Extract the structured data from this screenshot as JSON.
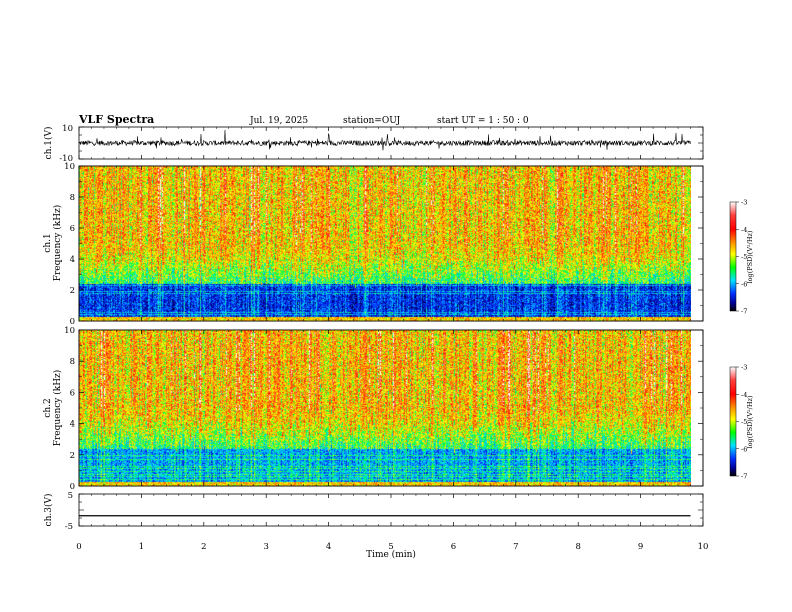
{
  "header": {
    "title": "VLF Spectra",
    "date": "Jul. 19, 2025",
    "station": "station=OUJ",
    "start": "start  UT =   1 : 50 : 0"
  },
  "chart_data": [
    {
      "type": "line",
      "panel": "waveform-ch1",
      "ylabel": "ch.1(V)",
      "ylim": [
        -10,
        10
      ],
      "yticks": [
        "10",
        "-10"
      ],
      "x": [
        0,
        1,
        2,
        3,
        4,
        5,
        6,
        7,
        8,
        9,
        9.8
      ],
      "values": [
        0,
        0,
        0,
        0,
        0,
        0,
        0,
        0,
        0,
        0,
        0
      ],
      "note_color": "#000000"
    },
    {
      "type": "heatmap",
      "panel": "spectrogram-ch1",
      "ylabel": "ch.1\nFrequency (kHz)",
      "ylabel_lines": [
        "ch.1",
        "Frequency (kHz)"
      ],
      "ylim": [
        0,
        10
      ],
      "yticks": [
        "0",
        "2",
        "4",
        "6",
        "8",
        "10"
      ],
      "xlim": [
        0,
        10
      ],
      "data_end_min": 9.8,
      "colorbar": {
        "label": "log(PSD)(V²/Hz)",
        "range": [
          -7,
          -3
        ],
        "ticks": [
          "-3",
          "-4",
          "-5",
          "-6",
          "-7"
        ],
        "colors": [
          "#ffffff",
          "#ff0000",
          "#ff8000",
          "#ffff00",
          "#00ff00",
          "#00ffff",
          "#0000ff",
          "#000080",
          "#000000"
        ]
      }
    },
    {
      "type": "heatmap",
      "panel": "spectrogram-ch2",
      "ylabel_lines": [
        "ch.2",
        "Frequency (kHz)"
      ],
      "ylim": [
        0,
        10
      ],
      "yticks": [
        "0",
        "2",
        "4",
        "6",
        "8",
        "10"
      ],
      "xlim": [
        0,
        10
      ],
      "data_end_min": 9.8,
      "colorbar": {
        "label": "log(PSD)(V²/Hz)",
        "range": [
          -7,
          -3
        ],
        "ticks": [
          "-3",
          "-4",
          "-5",
          "-6",
          "-7"
        ]
      }
    },
    {
      "type": "line",
      "panel": "waveform-ch3",
      "ylabel": "ch.3(V)",
      "ylim": [
        -5,
        5
      ],
      "yticks": [
        "5",
        "-5"
      ],
      "x": [
        0,
        9.8
      ],
      "values": [
        -1.8,
        -1.8
      ]
    }
  ],
  "xaxis": {
    "label": "Time (min)",
    "ticks": [
      "0",
      "1",
      "2",
      "3",
      "4",
      "5",
      "6",
      "7",
      "8",
      "9",
      "10"
    ],
    "xlim": [
      0,
      10
    ]
  }
}
